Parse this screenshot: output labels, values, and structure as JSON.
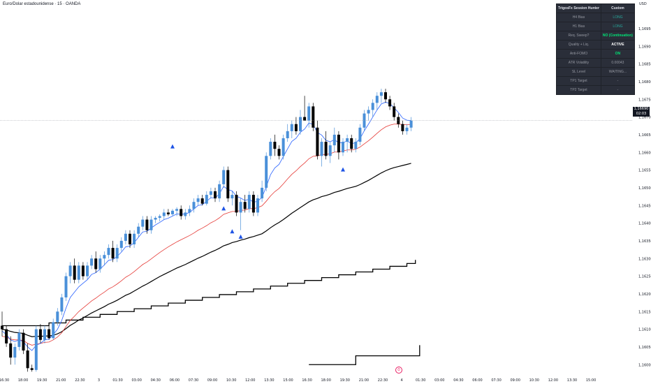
{
  "header": {
    "title": "Euro/Dolar estadounidense · 15 · OANDA"
  },
  "axis": {
    "currency": "USD"
  },
  "price_badge": {
    "price": "1,16690",
    "countdown": "02:03"
  },
  "table": {
    "header": [
      "TrigosFx Session Hunter",
      "Custom"
    ],
    "rows": [
      {
        "k": "H4 Bias",
        "v": "LONG",
        "color": "#26a69a"
      },
      {
        "k": "H1 Bias",
        "v": "LONG",
        "color": "#26a69a"
      },
      {
        "k": "Req. Sweep?",
        "v": "NO (Continuation)",
        "color": "#00e676"
      },
      {
        "k": "Quality + Liq.",
        "v": "ACTIVE",
        "color": "#ffffff"
      },
      {
        "k": "Anti-FOMO",
        "v": "ON",
        "color": "#00e676"
      },
      {
        "k": "ATR Volatility",
        "v": "0.00043",
        "color": "#9598a1"
      },
      {
        "k": "SL Level",
        "v": "WAITING...",
        "color": "#9598a1"
      },
      {
        "k": "TP1 Target",
        "v": "-",
        "color": "#9598a1"
      },
      {
        "k": "TP2 Target",
        "v": "-",
        "color": "#9598a1"
      }
    ]
  },
  "chart_data": {
    "type": "candlestick",
    "y_ticks": [
      "1,16950",
      "1,16900",
      "1,16850",
      "1,16800",
      "1,16750",
      "1,16700",
      "1,16650",
      "1,16600",
      "1,16550",
      "1,16500",
      "1,16450",
      "1,16400",
      "1,16350",
      "1,16300",
      "1,16250",
      "1,16200",
      "1,16150",
      "1,16100",
      "1,16050",
      "1,16000"
    ],
    "x_ticks": [
      "16:30",
      "18:00",
      "19:30",
      "21:00",
      "22:30",
      "3",
      "01:30",
      "03:00",
      "04:30",
      "06:00",
      "07:30",
      "09:00",
      "10:30",
      "12:00",
      "13:30",
      "15:00",
      "16:30",
      "18:00",
      "19:30",
      "21:00",
      "22:30",
      "4",
      "01:30",
      "03:00",
      "04:30",
      "06:00",
      "07:30",
      "09:00",
      "10:30",
      "12:00",
      "13:30",
      "15:00"
    ],
    "ylim": [
      1.15965,
      1.17015
    ],
    "current_price": 1.1669,
    "colors": {
      "up": "#4a90d9",
      "down": "#000000",
      "ema_fast": "#2962ff",
      "ema_mid": "#e53935",
      "ema_slow": "#000000"
    },
    "ohlc": [
      [
        1.1611,
        1.1615,
        1.1608,
        1.161
      ],
      [
        1.161,
        1.1611,
        1.1605,
        1.1606
      ],
      [
        1.1606,
        1.1608,
        1.16,
        1.1602
      ],
      [
        1.1602,
        1.1606,
        1.16,
        1.1605
      ],
      [
        1.1605,
        1.161,
        1.1604,
        1.1609
      ],
      [
        1.1609,
        1.161,
        1.1603,
        1.1604
      ],
      [
        1.1604,
        1.1606,
        1.1598,
        1.1599
      ],
      [
        1.1599,
        1.16,
        1.1598,
        1.15985
      ],
      [
        1.15985,
        1.1611,
        1.1598,
        1.161
      ],
      [
        1.161,
        1.16115,
        1.1606,
        1.1607
      ],
      [
        1.1607,
        1.1611,
        1.1606,
        1.161
      ],
      [
        1.161,
        1.1611,
        1.1607,
        1.16075
      ],
      [
        1.16075,
        1.1613,
        1.1607,
        1.1612
      ],
      [
        1.1612,
        1.1616,
        1.1611,
        1.1615
      ],
      [
        1.1615,
        1.162,
        1.1614,
        1.1619
      ],
      [
        1.1619,
        1.1626,
        1.1618,
        1.1625
      ],
      [
        1.1625,
        1.1629,
        1.1623,
        1.1628
      ],
      [
        1.1628,
        1.163,
        1.1623,
        1.1624
      ],
      [
        1.1624,
        1.1629,
        1.1623,
        1.1628
      ],
      [
        1.1628,
        1.1629,
        1.1624,
        1.1625
      ],
      [
        1.1625,
        1.1629,
        1.1624,
        1.1628
      ],
      [
        1.1628,
        1.1631,
        1.1627,
        1.163
      ],
      [
        1.163,
        1.1632,
        1.1626,
        1.1627
      ],
      [
        1.1627,
        1.1631,
        1.1626,
        1.163
      ],
      [
        1.163,
        1.1632,
        1.1628,
        1.1631
      ],
      [
        1.1631,
        1.1634,
        1.163,
        1.1633
      ],
      [
        1.1633,
        1.1635,
        1.1629,
        1.163
      ],
      [
        1.163,
        1.1634,
        1.1629,
        1.1633
      ],
      [
        1.1633,
        1.1636,
        1.1632,
        1.1635
      ],
      [
        1.1635,
        1.1638,
        1.1634,
        1.1637
      ],
      [
        1.1637,
        1.1638,
        1.1633,
        1.1634
      ],
      [
        1.1634,
        1.1638,
        1.1633,
        1.1637
      ],
      [
        1.1637,
        1.164,
        1.1636,
        1.1639
      ],
      [
        1.1639,
        1.1642,
        1.1638,
        1.1641
      ],
      [
        1.1641,
        1.1642,
        1.1637,
        1.1638
      ],
      [
        1.1638,
        1.1642,
        1.1637,
        1.1641
      ],
      [
        1.1641,
        1.1642,
        1.164,
        1.16415
      ],
      [
        1.16415,
        1.16425,
        1.16405,
        1.1642
      ],
      [
        1.1642,
        1.1644,
        1.1641,
        1.1643
      ],
      [
        1.1643,
        1.1644,
        1.1642,
        1.16425
      ],
      [
        1.16425,
        1.1644,
        1.1642,
        1.16435
      ],
      [
        1.16435,
        1.16445,
        1.1642,
        1.1644
      ],
      [
        1.1644,
        1.1645,
        1.1641,
        1.1642
      ],
      [
        1.1642,
        1.1644,
        1.1641,
        1.1643
      ],
      [
        1.1643,
        1.1645,
        1.1642,
        1.1644
      ],
      [
        1.1644,
        1.1647,
        1.1643,
        1.1646
      ],
      [
        1.1646,
        1.1648,
        1.1645,
        1.1647
      ],
      [
        1.1647,
        1.1648,
        1.1645,
        1.16455
      ],
      [
        1.16455,
        1.1649,
        1.1645,
        1.1648
      ],
      [
        1.1648,
        1.165,
        1.1647,
        1.1649
      ],
      [
        1.1649,
        1.165,
        1.1646,
        1.1647
      ],
      [
        1.1647,
        1.1652,
        1.1646,
        1.1651
      ],
      [
        1.1651,
        1.1656,
        1.165,
        1.1655
      ],
      [
        1.1655,
        1.1656,
        1.1646,
        1.1647
      ],
      [
        1.1647,
        1.1649,
        1.1645,
        1.1648
      ],
      [
        1.1648,
        1.1649,
        1.1642,
        1.1643
      ],
      [
        1.1643,
        1.1647,
        1.1638,
        1.1646
      ],
      [
        1.1646,
        1.1648,
        1.1643,
        1.1644
      ],
      [
        1.1644,
        1.1649,
        1.1643,
        1.1648
      ],
      [
        1.1648,
        1.1649,
        1.1642,
        1.1643
      ],
      [
        1.1643,
        1.1648,
        1.1642,
        1.1647
      ],
      [
        1.1647,
        1.1652,
        1.1646,
        1.165
      ],
      [
        1.165,
        1.166,
        1.1649,
        1.1659
      ],
      [
        1.1659,
        1.1664,
        1.1658,
        1.1663
      ],
      [
        1.1663,
        1.1665,
        1.1659,
        1.1661
      ],
      [
        1.1661,
        1.1662,
        1.1658,
        1.1659
      ],
      [
        1.1659,
        1.1665,
        1.1658,
        1.1664
      ],
      [
        1.1664,
        1.1668,
        1.1663,
        1.1666
      ],
      [
        1.1666,
        1.1669,
        1.1664,
        1.1668
      ],
      [
        1.1668,
        1.167,
        1.1665,
        1.1666
      ],
      [
        1.1666,
        1.1672,
        1.1665,
        1.167
      ],
      [
        1.167,
        1.1676,
        1.1669,
        1.1669
      ],
      [
        1.1669,
        1.1674,
        1.1667,
        1.1673
      ],
      [
        1.1673,
        1.1674,
        1.1666,
        1.1667
      ],
      [
        1.1667,
        1.1669,
        1.1658,
        1.1659
      ],
      [
        1.1659,
        1.1664,
        1.1656,
        1.1663
      ],
      [
        1.1663,
        1.1666,
        1.1658,
        1.1659
      ],
      [
        1.1659,
        1.1663,
        1.1657,
        1.1662
      ],
      [
        1.1662,
        1.1667,
        1.166,
        1.1665
      ],
      [
        1.1665,
        1.1666,
        1.1658,
        1.166
      ],
      [
        1.166,
        1.1664,
        1.1659,
        1.1663
      ],
      [
        1.1663,
        1.1665,
        1.166,
        1.1664
      ],
      [
        1.1664,
        1.1665,
        1.166,
        1.1661
      ],
      [
        1.1661,
        1.1664,
        1.166,
        1.1663
      ],
      [
        1.1663,
        1.1668,
        1.1662,
        1.1667
      ],
      [
        1.1667,
        1.1672,
        1.1666,
        1.1671
      ],
      [
        1.1671,
        1.1673,
        1.1669,
        1.1672
      ],
      [
        1.1672,
        1.1675,
        1.167,
        1.1674
      ],
      [
        1.1674,
        1.1677,
        1.1672,
        1.1676
      ],
      [
        1.1676,
        1.1678,
        1.1674,
        1.1677
      ],
      [
        1.1677,
        1.1678,
        1.1674,
        1.1675
      ],
      [
        1.1675,
        1.1676,
        1.1672,
        1.1673
      ],
      [
        1.1673,
        1.1674,
        1.1669,
        1.167
      ],
      [
        1.167,
        1.1671,
        1.1667,
        1.1668
      ],
      [
        1.1668,
        1.1669,
        1.1665,
        1.1666
      ],
      [
        1.1666,
        1.1668,
        1.1665,
        1.1667
      ],
      [
        1.1667,
        1.167,
        1.1666,
        1.1669
      ]
    ],
    "ema_fast": [
      1.16095,
      1.16085,
      1.1607,
      1.16065,
      1.1607,
      1.16065,
      1.1605,
      1.1604,
      1.16055,
      1.1606,
      1.1607,
      1.16072,
      1.16085,
      1.161,
      1.16125,
      1.1616,
      1.1619,
      1.16205,
      1.1622,
      1.1623,
      1.1624,
      1.16255,
      1.1626,
      1.1627,
      1.16282,
      1.16295,
      1.16297,
      1.16306,
      1.16318,
      1.16333,
      1.16335,
      1.16345,
      1.1636,
      1.16375,
      1.16377,
      1.16386,
      1.16395,
      1.16402,
      1.1641,
      1.16414,
      1.1642,
      1.16426,
      1.16425,
      1.16426,
      1.1643,
      1.1644,
      1.1645,
      1.16452,
      1.16462,
      1.16472,
      1.16471,
      1.16483,
      1.16504,
      1.16495,
      1.16491,
      1.16476,
      1.16471,
      1.16464,
      1.16468,
      1.16459,
      1.16462,
      1.16473,
      1.16503,
      1.16537,
      1.16556,
      1.16566,
      1.16588,
      1.1661,
      1.16631,
      1.1664,
      1.16657,
      1.16666,
      1.16683,
      1.16679,
      1.16656,
      1.16649,
      1.16634,
      1.1663,
      1.16636,
      1.16627,
      1.16628,
      1.16632,
      1.16625,
      1.16627,
      1.16639,
      1.16661,
      1.1668,
      1.167,
      1.1672,
      1.16737,
      1.16742,
      1.16738,
      1.16726,
      1.16713,
      1.16697,
      1.16691,
      1.1669
    ],
    "ema_mid": [
      1.1608,
      1.16078,
      1.16072,
      1.1607,
      1.1607,
      1.16068,
      1.1606,
      1.16055,
      1.16058,
      1.1606,
      1.16063,
      1.16064,
      1.1607,
      1.16078,
      1.1609,
      1.16108,
      1.16125,
      1.16137,
      1.1615,
      1.1616,
      1.1617,
      1.1618,
      1.16188,
      1.16197,
      1.16205,
      1.16214,
      1.1622,
      1.16228,
      1.16237,
      1.16247,
      1.16254,
      1.16263,
      1.16273,
      1.16283,
      1.1629,
      1.16299,
      1.16308,
      1.16317,
      1.16325,
      1.16333,
      1.1634,
      1.16347,
      1.16353,
      1.16359,
      1.16365,
      1.16372,
      1.1638,
      1.16386,
      1.16393,
      1.16401,
      1.16407,
      1.16415,
      1.16425,
      1.16429,
      1.16433,
      1.16433,
      1.16436,
      1.16437,
      1.16441,
      1.16441,
      1.16444,
      1.16449,
      1.16462,
      1.16477,
      1.16489,
      1.16498,
      1.16511,
      1.16525,
      1.16538,
      1.16548,
      1.1656,
      1.1657,
      1.16582,
      1.16589,
      1.1659,
      1.16594,
      1.16594,
      1.16596,
      1.16601,
      1.16601,
      1.16604,
      1.16607,
      1.16607,
      1.16609,
      1.16615,
      1.16624,
      1.16633,
      1.16643,
      1.16654,
      1.16664,
      1.16672,
      1.16677,
      1.1668,
      1.1668,
      1.16679,
      1.16678,
      1.16679
    ],
    "ema_slow": [
      1.161,
      1.16098,
      1.16094,
      1.16091,
      1.1609,
      1.16088,
      1.16083,
      1.16079,
      1.1608,
      1.1608,
      1.16081,
      1.16081,
      1.16083,
      1.16087,
      1.16093,
      1.16102,
      1.16111,
      1.16118,
      1.16126,
      1.16132,
      1.16139,
      1.16146,
      1.16152,
      1.16158,
      1.16164,
      1.16171,
      1.16176,
      1.16182,
      1.16189,
      1.16196,
      1.16201,
      1.16208,
      1.16215,
      1.16222,
      1.16228,
      1.16235,
      1.16242,
      1.16249,
      1.16255,
      1.16261,
      1.16267,
      1.16273,
      1.16278,
      1.16283,
      1.16289,
      1.16295,
      1.16301,
      1.16306,
      1.16312,
      1.16318,
      1.16323,
      1.16329,
      1.16336,
      1.1634,
      1.16345,
      1.16348,
      1.16352,
      1.16355,
      1.16359,
      1.16362,
      1.16366,
      1.1637,
      1.16378,
      1.16387,
      1.16395,
      1.16402,
      1.1641,
      1.16419,
      1.16428,
      1.16436,
      1.16444,
      1.16452,
      1.1646,
      1.16466,
      1.1647,
      1.16475,
      1.16478,
      1.16482,
      1.16487,
      1.1649,
      1.16494,
      1.16498,
      1.16501,
      1.16504,
      1.16509,
      1.16515,
      1.16521,
      1.16528,
      1.16535,
      1.16542,
      1.16548,
      1.16553,
      1.16557,
      1.1656,
      1.16563,
      1.16566,
      1.16569
    ],
    "step_upper": [
      [
        0,
        1.1611
      ],
      [
        10,
        1.1611
      ],
      [
        11,
        1.16118
      ],
      [
        15,
        1.16126
      ],
      [
        19,
        1.16134
      ],
      [
        23,
        1.16142
      ],
      [
        27,
        1.1615
      ],
      [
        31,
        1.16158
      ],
      [
        35,
        1.16166
      ],
      [
        39,
        1.16174
      ],
      [
        43,
        1.16182
      ],
      [
        47,
        1.1619
      ],
      [
        51,
        1.16198
      ],
      [
        55,
        1.16206
      ],
      [
        59,
        1.16214
      ],
      [
        63,
        1.16222
      ],
      [
        67,
        1.1623
      ],
      [
        71,
        1.16238
      ],
      [
        75,
        1.16246
      ],
      [
        79,
        1.16254
      ],
      [
        83,
        1.16262
      ],
      [
        87,
        1.1627
      ],
      [
        91,
        1.16278
      ],
      [
        95,
        1.16286
      ],
      [
        97,
        1.16296
      ]
    ],
    "step_lower": [
      [
        72,
        1.16
      ],
      [
        82,
        1.16
      ],
      [
        83,
        1.16025
      ],
      [
        97,
        1.16025
      ],
      [
        98,
        1.16055
      ]
    ],
    "triangles": [
      [
        40,
        1.16615
      ],
      [
        52,
        1.1644
      ],
      [
        54,
        1.16375
      ],
      [
        56,
        1.1636
      ],
      [
        80,
        1.1655
      ]
    ]
  }
}
